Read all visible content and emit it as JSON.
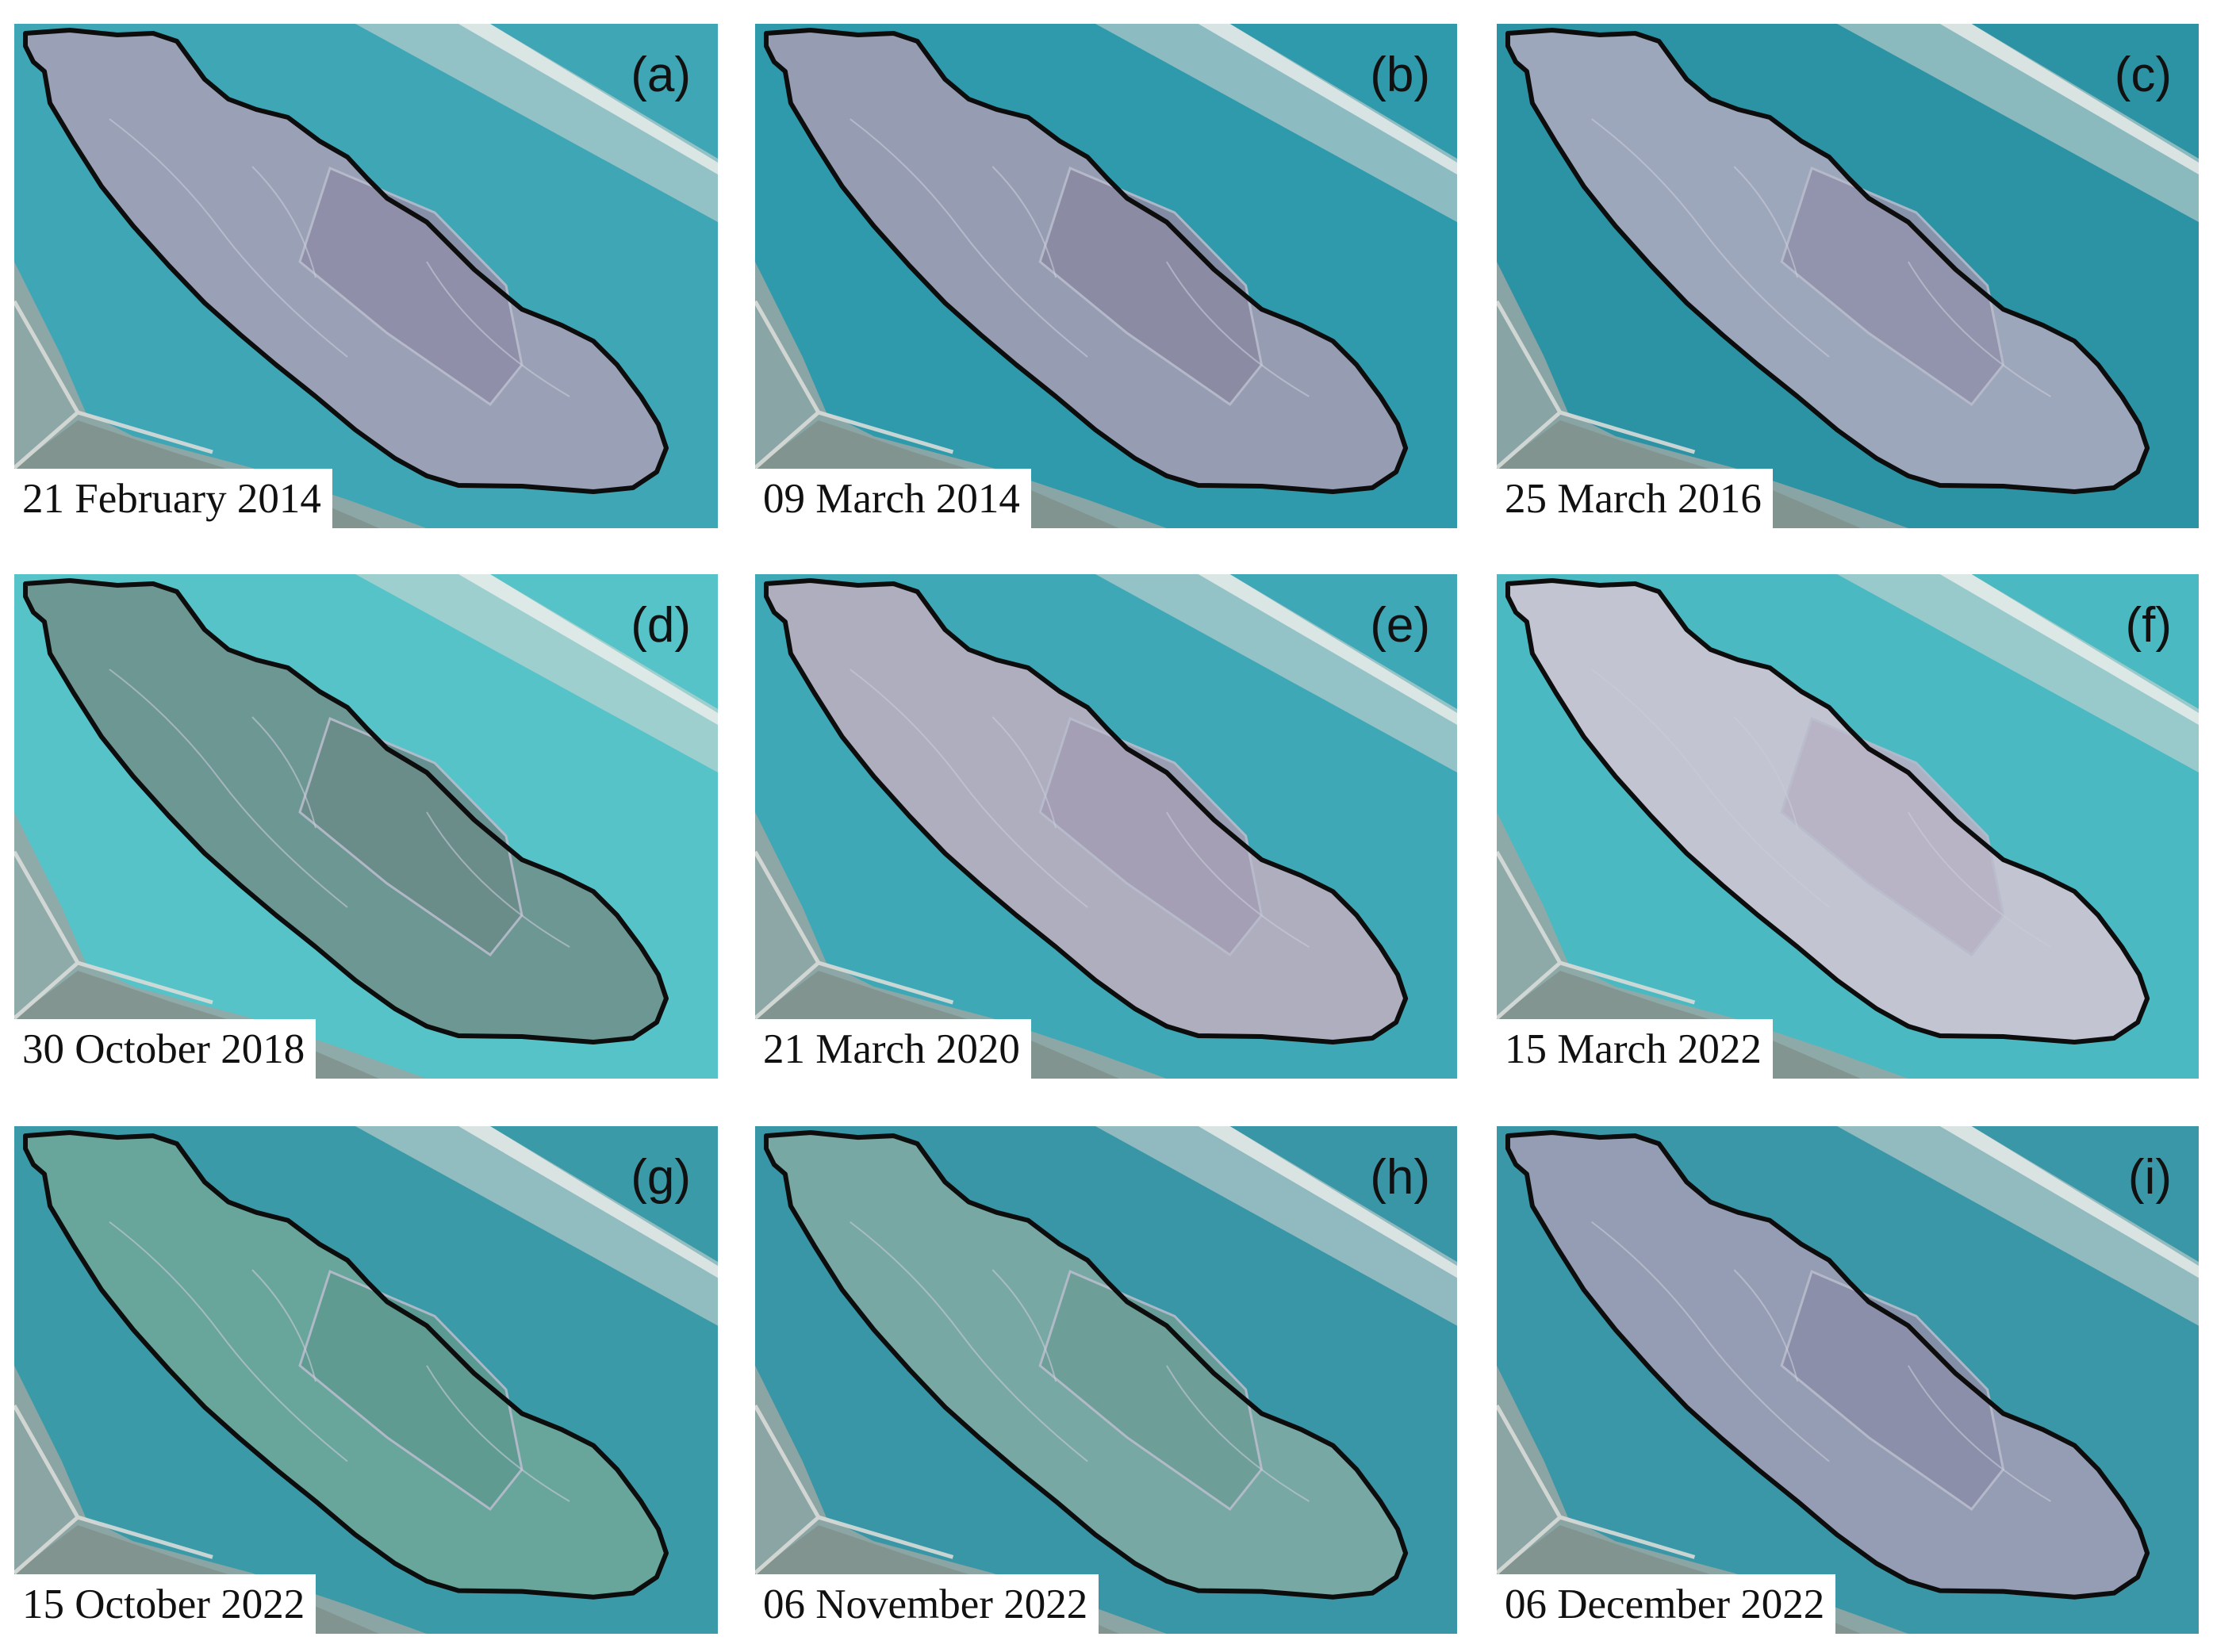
{
  "panels": [
    {
      "letter": "(a)",
      "date": "21 February 2014",
      "water": "#3ea6b5",
      "land": "#9fa0b6",
      "inner": "#8e8ea8"
    },
    {
      "letter": "(b)",
      "date": "09 March 2014",
      "water": "#2f9aab",
      "land": "#9c9db3",
      "inner": "#8a8aa3"
    },
    {
      "letter": "(c)",
      "date": "25 March 2016",
      "water": "#2c93a5",
      "land": "#a3a8bc",
      "inner": "#9093ab"
    },
    {
      "letter": "(d)",
      "date": "30 October 2018",
      "water": "#55c3c8",
      "land": "#6f9590",
      "inner": "#6a8c8a"
    },
    {
      "letter": "(e)",
      "date": "21 March 2020",
      "water": "#3fa8b6",
      "land": "#b4aebf",
      "inner": "#a39eb3"
    },
    {
      "letter": "(f)",
      "date": "15 March 2022",
      "water": "#4ab9c2",
      "land": "#c9c4d2",
      "inner": "#b7b2c4"
    },
    {
      "letter": "(g)",
      "date": "15 October 2022",
      "water": "#3b9aa8",
      "land": "#6aa59a",
      "inner": "#5f9b90"
    },
    {
      "letter": "(h)",
      "date": "06 November 2022",
      "water": "#3996a6",
      "land": "#7aa9a2",
      "inner": "#6d9d97"
    },
    {
      "letter": "(i)",
      "date": "06 December 2022",
      "water": "#3a97a7",
      "land": "#9a9db4",
      "inner": "#8b8ea8"
    }
  ],
  "colors": {
    "outline": "#0d0d0d",
    "label_background": "#ffffff",
    "label_text": "#111111",
    "sand": "#d8d8d4",
    "shore": "#9aa7a3"
  }
}
